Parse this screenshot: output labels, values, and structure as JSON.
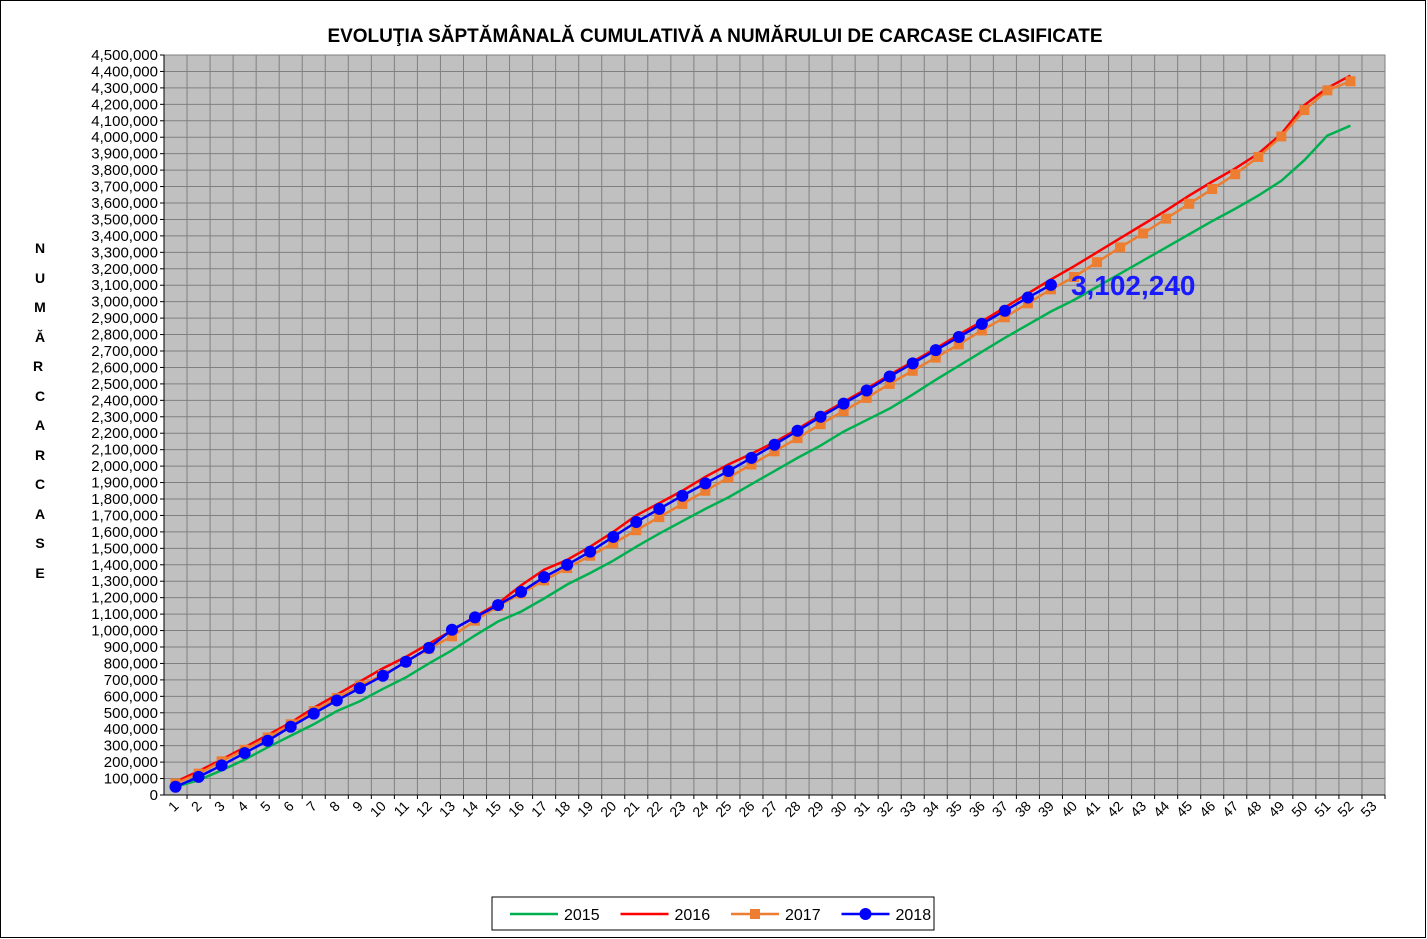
{
  "chart_data": {
    "type": "line",
    "title": "EVOLUŢIA SĂPTĂMÂNALĂ CUMULATIVĂ A NUMĂRULUI DE CARCASE  CLASIFICATE",
    "y_label": "NUMĂR CARCASE",
    "categories": [
      "1",
      "2",
      "3",
      "4",
      "5",
      "6",
      "7",
      "8",
      "9",
      "10",
      "11",
      "12",
      "13",
      "14",
      "15",
      "16",
      "17",
      "18",
      "19",
      "20",
      "21",
      "22",
      "23",
      "24",
      "25",
      "26",
      "27",
      "28",
      "29",
      "30",
      "31",
      "32",
      "33",
      "34",
      "35",
      "36",
      "37",
      "38",
      "39",
      "40",
      "41",
      "42",
      "43",
      "44",
      "45",
      "46",
      "47",
      "48",
      "49",
      "50",
      "51",
      "52",
      "53"
    ],
    "ylim": [
      0,
      4500000
    ],
    "yticks": [
      0,
      {
        "value": 100000,
        "label": "100,000"
      },
      {
        "value": 200000,
        "label": "200,000"
      },
      {
        "value": 300000,
        "label": "300,000"
      },
      {
        "value": 400000,
        "label": "400,000"
      },
      {
        "value": 500000,
        "label": "500,000"
      },
      {
        "value": 600000,
        "label": "600,000"
      },
      {
        "value": 700000,
        "label": "700,000"
      },
      {
        "value": 800000,
        "label": "800,000"
      },
      {
        "value": 900000,
        "label": "900,000"
      },
      {
        "value": 1000000,
        "label": "1,000,000"
      },
      {
        "value": 1100000,
        "label": "1,100,000"
      },
      {
        "value": 1200000,
        "label": "1,200,000"
      },
      {
        "value": 1300000,
        "label": "1,300,000"
      },
      {
        "value": 1400000,
        "label": "1,400,000"
      },
      {
        "value": 1500000,
        "label": "1,500,000"
      },
      {
        "value": 1600000,
        "label": "1,600,000"
      },
      {
        "value": 1700000,
        "label": "1,700,000"
      },
      {
        "value": 1800000,
        "label": "1,800,000"
      },
      {
        "value": 1900000,
        "label": "1,900,000"
      },
      {
        "value": 2000000,
        "label": "2,000,000"
      },
      {
        "value": 2100000,
        "label": "2,100,000"
      },
      {
        "value": 2200000,
        "label": "2,200,000"
      },
      {
        "value": 2300000,
        "label": "2,300,000"
      },
      {
        "value": 2400000,
        "label": "2,400,000"
      },
      {
        "value": 2500000,
        "label": "2,500,000"
      },
      {
        "value": 2600000,
        "label": "2,600,000"
      },
      {
        "value": 2700000,
        "label": "2,700,000"
      },
      {
        "value": 2800000,
        "label": "2,800,000"
      },
      {
        "value": 2900000,
        "label": "2,900,000"
      },
      {
        "value": 3000000,
        "label": "3,000,000"
      },
      {
        "value": 3100000,
        "label": "3,100,000"
      },
      {
        "value": 3200000,
        "label": "3,200,000"
      },
      {
        "value": 3300000,
        "label": "3,300,000"
      },
      {
        "value": 3400000,
        "label": "3,400,000"
      },
      {
        "value": 3500000,
        "label": "3,500,000"
      },
      {
        "value": 3600000,
        "label": "3,600,000"
      },
      {
        "value": 3700000,
        "label": "3,700,000"
      },
      {
        "value": 3800000,
        "label": "3,800,000"
      },
      {
        "value": 3900000,
        "label": "3,900,000"
      },
      {
        "value": 4000000,
        "label": "4,000,000"
      },
      {
        "value": 4100000,
        "label": "4,100,000"
      },
      {
        "value": 4200000,
        "label": "4,200,000"
      },
      {
        "value": 4300000,
        "label": "4,300,000"
      },
      {
        "value": 4400000,
        "label": "4,400,000"
      },
      {
        "value": 4500000,
        "label": "4,500,000"
      }
    ],
    "grid": true,
    "legend": "bottom",
    "series": [
      {
        "name": "2015",
        "color": "#00b050",
        "marker": "none",
        "values": [
          50000,
          90000,
          150000,
          215000,
          290000,
          360000,
          430000,
          510000,
          570000,
          645000,
          715000,
          800000,
          880000,
          970000,
          1055000,
          1115000,
          1195000,
          1280000,
          1350000,
          1425000,
          1510000,
          1590000,
          1665000,
          1740000,
          1810000,
          1890000,
          1970000,
          2050000,
          2125000,
          2210000,
          2280000,
          2350000,
          2435000,
          2525000,
          2610000,
          2695000,
          2780000,
          2860000,
          2940000,
          3010000,
          3090000,
          3170000,
          3250000,
          3330000,
          3410000,
          3490000,
          3565000,
          3645000,
          3735000,
          3860000,
          4010000,
          4070000,
          null
        ]
      },
      {
        "name": "2016",
        "color": "#ff0000",
        "marker": "none",
        "values": [
          80000,
          145000,
          215000,
          290000,
          365000,
          440000,
          530000,
          610000,
          690000,
          770000,
          840000,
          920000,
          1000000,
          1085000,
          1165000,
          1275000,
          1370000,
          1430000,
          1510000,
          1600000,
          1700000,
          1775000,
          1850000,
          1935000,
          2010000,
          2075000,
          2145000,
          2225000,
          2310000,
          2390000,
          2470000,
          2555000,
          2635000,
          2715000,
          2800000,
          2880000,
          2965000,
          3050000,
          3135000,
          3215000,
          3300000,
          3385000,
          3470000,
          3555000,
          3645000,
          3730000,
          3810000,
          3900000,
          4020000,
          4195000,
          4300000,
          4375000,
          null
        ]
      },
      {
        "name": "2017",
        "color": "#ed7d31",
        "marker": "square",
        "values": [
          70000,
          130000,
          205000,
          275000,
          350000,
          430000,
          510000,
          590000,
          665000,
          730000,
          810000,
          890000,
          965000,
          1060000,
          1150000,
          1225000,
          1305000,
          1380000,
          1455000,
          1530000,
          1610000,
          1690000,
          1770000,
          1850000,
          1930000,
          2010000,
          2090000,
          2170000,
          2255000,
          2335000,
          2415000,
          2500000,
          2580000,
          2660000,
          2740000,
          2825000,
          2905000,
          2990000,
          3075000,
          3150000,
          3240000,
          3330000,
          3415000,
          3505000,
          3595000,
          3685000,
          3775000,
          3880000,
          4005000,
          4165000,
          4285000,
          4340000,
          null
        ]
      },
      {
        "name": "2018",
        "color": "#0000ff",
        "marker": "circle",
        "values": [
          50000,
          110000,
          180000,
          255000,
          330000,
          415000,
          495000,
          575000,
          650000,
          725000,
          810000,
          895000,
          1005000,
          1080000,
          1155000,
          1235000,
          1325000,
          1400000,
          1480000,
          1570000,
          1660000,
          1740000,
          1820000,
          1895000,
          1970000,
          2050000,
          2130000,
          2215000,
          2300000,
          2380000,
          2460000,
          2545000,
          2625000,
          2705000,
          2785000,
          2865000,
          2945000,
          3025000,
          3102240,
          null,
          null,
          null,
          null,
          null,
          null,
          null,
          null,
          null,
          null,
          null,
          null,
          null,
          null
        ],
        "value_labels": [
          null,
          null,
          null,
          null,
          null,
          null,
          null,
          null,
          null,
          null,
          null,
          null,
          null,
          null,
          null,
          null,
          null,
          null,
          null,
          null,
          null,
          null,
          null,
          null,
          null,
          null,
          null,
          null,
          null,
          null,
          null,
          null,
          null,
          null,
          null,
          null,
          null,
          null,
          "3,102,240",
          null,
          null,
          null,
          null,
          null,
          null,
          null,
          null,
          null,
          null,
          null,
          null,
          null,
          null
        ]
      }
    ]
  }
}
